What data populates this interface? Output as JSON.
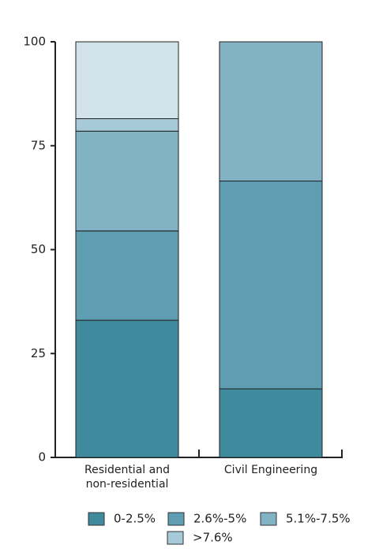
{
  "chart_data": {
    "type": "stacked_bar",
    "categories": [
      "Residential and non-residential",
      "Civil Engineering"
    ],
    "series": [
      {
        "name": "0-2.5%",
        "color": "#3f8a9d",
        "values": [
          33,
          16.5
        ]
      },
      {
        "name": "2.6%-5%",
        "color": "#5e9db2",
        "values": [
          21.5,
          50
        ]
      },
      {
        "name": "5.1%-7.5%",
        "color": "#82b3c4",
        "values": [
          24,
          33.5
        ]
      },
      {
        "name": ">7.6%",
        "color": "#a6cad7",
        "values": [
          3,
          0
        ]
      },
      {
        "name": null,
        "color": "#d3e3ea",
        "values": [
          18.5,
          0
        ]
      }
    ],
    "ylim": [
      0,
      100
    ],
    "yticks": [
      0,
      25,
      50,
      75,
      100
    ]
  }
}
